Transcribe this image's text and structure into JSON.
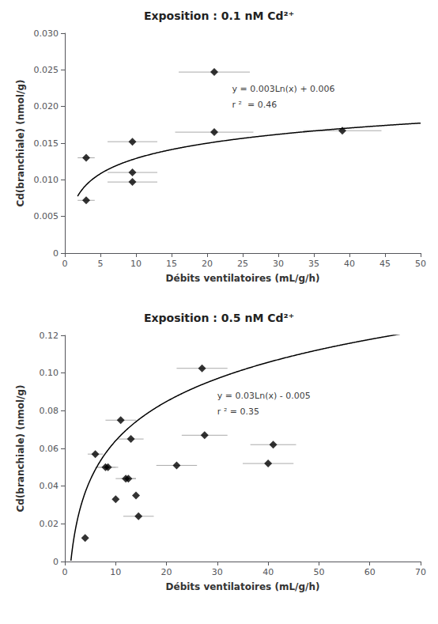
{
  "chart_data": [
    {
      "type": "scatter",
      "title": "Exposition : 0.1 nM Cd²⁺",
      "xlabel": "Débits ventilatoires (mL/g/h)",
      "ylabel": "Cd(branchiale) (nmol/g)",
      "xlim": [
        0,
        50
      ],
      "ylim": [
        0,
        0.03
      ],
      "xticks": [
        0,
        5,
        10,
        15,
        20,
        25,
        30,
        35,
        40,
        45,
        50
      ],
      "yticks": [
        0,
        0.005,
        {
          "value": 0.01,
          "label": "0.010"
        },
        0.015,
        {
          "value": 0.02,
          "label": "0.020"
        },
        0.025,
        {
          "value": 0.03,
          "label": "0.030"
        }
      ],
      "grid": false,
      "marker": "diamond",
      "color": "black",
      "x": [
        3.0,
        3.0,
        9.5,
        9.5,
        9.5,
        21.0,
        21.0,
        39.0
      ],
      "values": [
        0.013,
        0.0072,
        0.0152,
        0.0097,
        0.011,
        0.0247,
        0.0165,
        0.0167
      ],
      "xerr": [
        1.2,
        1.2,
        3.5,
        3.5,
        3.5,
        5.0,
        5.5,
        5.5
      ],
      "yerr": [
        0.0,
        0.0,
        0.0,
        0.0,
        0.0,
        0.0,
        0.0,
        0.0
      ],
      "error_color": "#aaaaaa",
      "fit": {
        "type": "line",
        "a": 0.003,
        "b": 0.006,
        "xmin": 1.8,
        "xmax": 50,
        "color": "black"
      },
      "annotation": {
        "text": [
          "y = 0.003Ln(x) + 0.006",
          "r ²  = 0.46"
        ],
        "x": 23.5,
        "y": 0.0235
      }
    },
    {
      "type": "scatter",
      "title": "Exposition : 0.5 nM Cd²⁺",
      "xlabel": "Débits ventilatoires (mL/g/h)",
      "ylabel": "Cd(branchiale) (nmol/g)",
      "xlim": [
        0,
        70
      ],
      "ylim": [
        0,
        0.12
      ],
      "xticks": [
        0,
        10,
        20,
        30,
        40,
        50,
        60,
        70
      ],
      "yticks": [
        0,
        0.02,
        0.04,
        0.06,
        0.08,
        {
          "value": 0.1,
          "label": "0.10"
        },
        0.12
      ],
      "grid": false,
      "marker": "diamond",
      "color": "black",
      "x": [
        4.0,
        6.0,
        8.0,
        8.5,
        10.0,
        11.0,
        12.0,
        12.5,
        13.0,
        14.0,
        14.5,
        22.0,
        27.0,
        27.5,
        40.0,
        41.0
      ],
      "values": [
        0.0125,
        0.057,
        0.05,
        0.05,
        0.033,
        0.075,
        0.044,
        0.044,
        0.065,
        0.035,
        0.024,
        0.051,
        0.1025,
        0.067,
        0.052,
        0.062
      ],
      "xerr": [
        0.0,
        1.5,
        2.0,
        2.0,
        0.0,
        3.0,
        2.0,
        1.5,
        2.5,
        0.0,
        3.0,
        4.0,
        5.0,
        4.5,
        5.0,
        4.5
      ],
      "yerr": [
        0.0,
        0.0,
        0.0,
        0.0,
        0.0,
        0.0,
        0.0,
        0.0,
        0.0,
        0.0,
        0.0,
        0.0,
        0.0,
        0.0,
        0.0,
        0.0
      ],
      "error_color": "#aaaaaa",
      "fit": {
        "type": "line",
        "a": 0.03,
        "b": -0.005,
        "xmin": 1.2,
        "xmax": 70,
        "color": "black"
      },
      "annotation": {
        "text": [
          "y = 0.03Ln(x) - 0.005",
          "r ² = 0.35"
        ],
        "x": 30.0,
        "y": 0.092
      }
    }
  ]
}
